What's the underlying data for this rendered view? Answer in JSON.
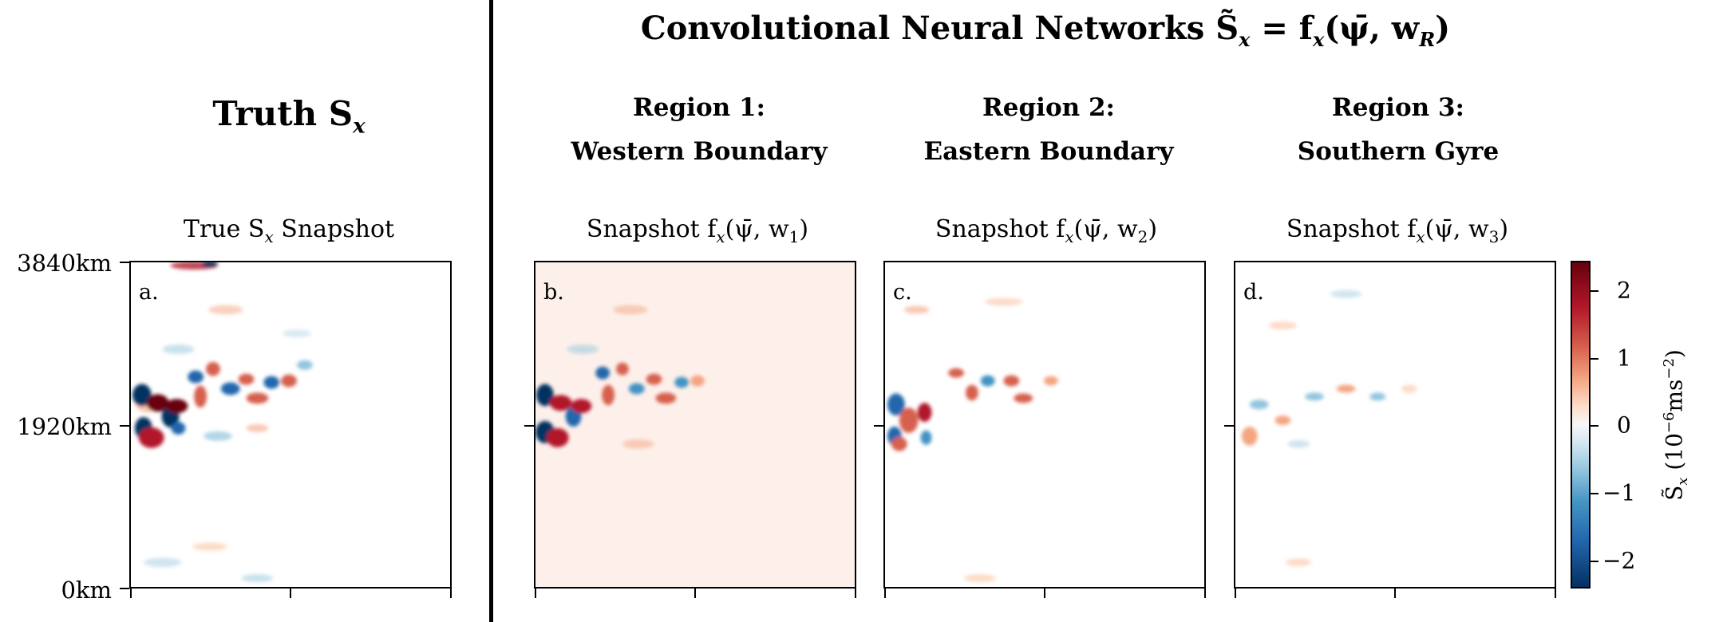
{
  "header": {
    "left_title": "Truth S",
    "left_title_sub": "x",
    "right_title": "Convolutional Neural Networks S̃",
    "right_title_sub": "x",
    "right_title_eq": " = f",
    "right_title_eq_sub": "x",
    "right_title_args": "(ψ̄, w",
    "right_title_args_sub": "R",
    "right_title_end": ")"
  },
  "regions": [
    {
      "line1": "Region 1:",
      "line2": "Western Boundary"
    },
    {
      "line1": "Region 2:",
      "line2": "Eastern Boundary"
    },
    {
      "line1": "Region 3:",
      "line2": "Southern Gyre"
    }
  ],
  "panels": [
    {
      "letter": "a.",
      "title_pre": "True S",
      "title_sub": "x",
      "title_post": " Snapshot"
    },
    {
      "letter": "b.",
      "title_pre": "Snapshot  f",
      "title_sub": "x",
      "title_args": "(ψ̄, w",
      "title_args_sub": "1",
      "title_post": ")"
    },
    {
      "letter": "c.",
      "title_pre": "Snapshot  f",
      "title_sub": "x",
      "title_args": "(ψ̄, w",
      "title_args_sub": "2",
      "title_post": ")"
    },
    {
      "letter": "d.",
      "title_pre": "Snapshot  f",
      "title_sub": "x",
      "title_args": "(ψ̄, w",
      "title_args_sub": "3",
      "title_post": ")"
    }
  ],
  "y_axis": {
    "ticks": [
      "3840km",
      "1920km",
      "0km"
    ]
  },
  "colorbar": {
    "ticks": [
      "2",
      "1",
      "0",
      "−1",
      "−2"
    ],
    "title": "S̃",
    "title_sub": "x",
    "title_units": "  (10",
    "title_units_sup": "−6",
    "title_units_mid": "ms",
    "title_units_sup2": "−2",
    "title_units_end": ")"
  },
  "chart_data": {
    "type": "heatmap",
    "colormap": "RdBu_r",
    "vmin": -2.4,
    "vmax": 2.4,
    "ylim_km": [
      0,
      3840
    ],
    "yticks_km": [
      0,
      1920,
      3840
    ],
    "panels": [
      "a. True S_x",
      "b. f_x(ψ̄, w1)",
      "c. f_x(ψ̄, w2)",
      "d. f_x(ψ̄, w3)"
    ],
    "colorbar_ticks": [
      -2,
      -1,
      0,
      1,
      2
    ]
  }
}
